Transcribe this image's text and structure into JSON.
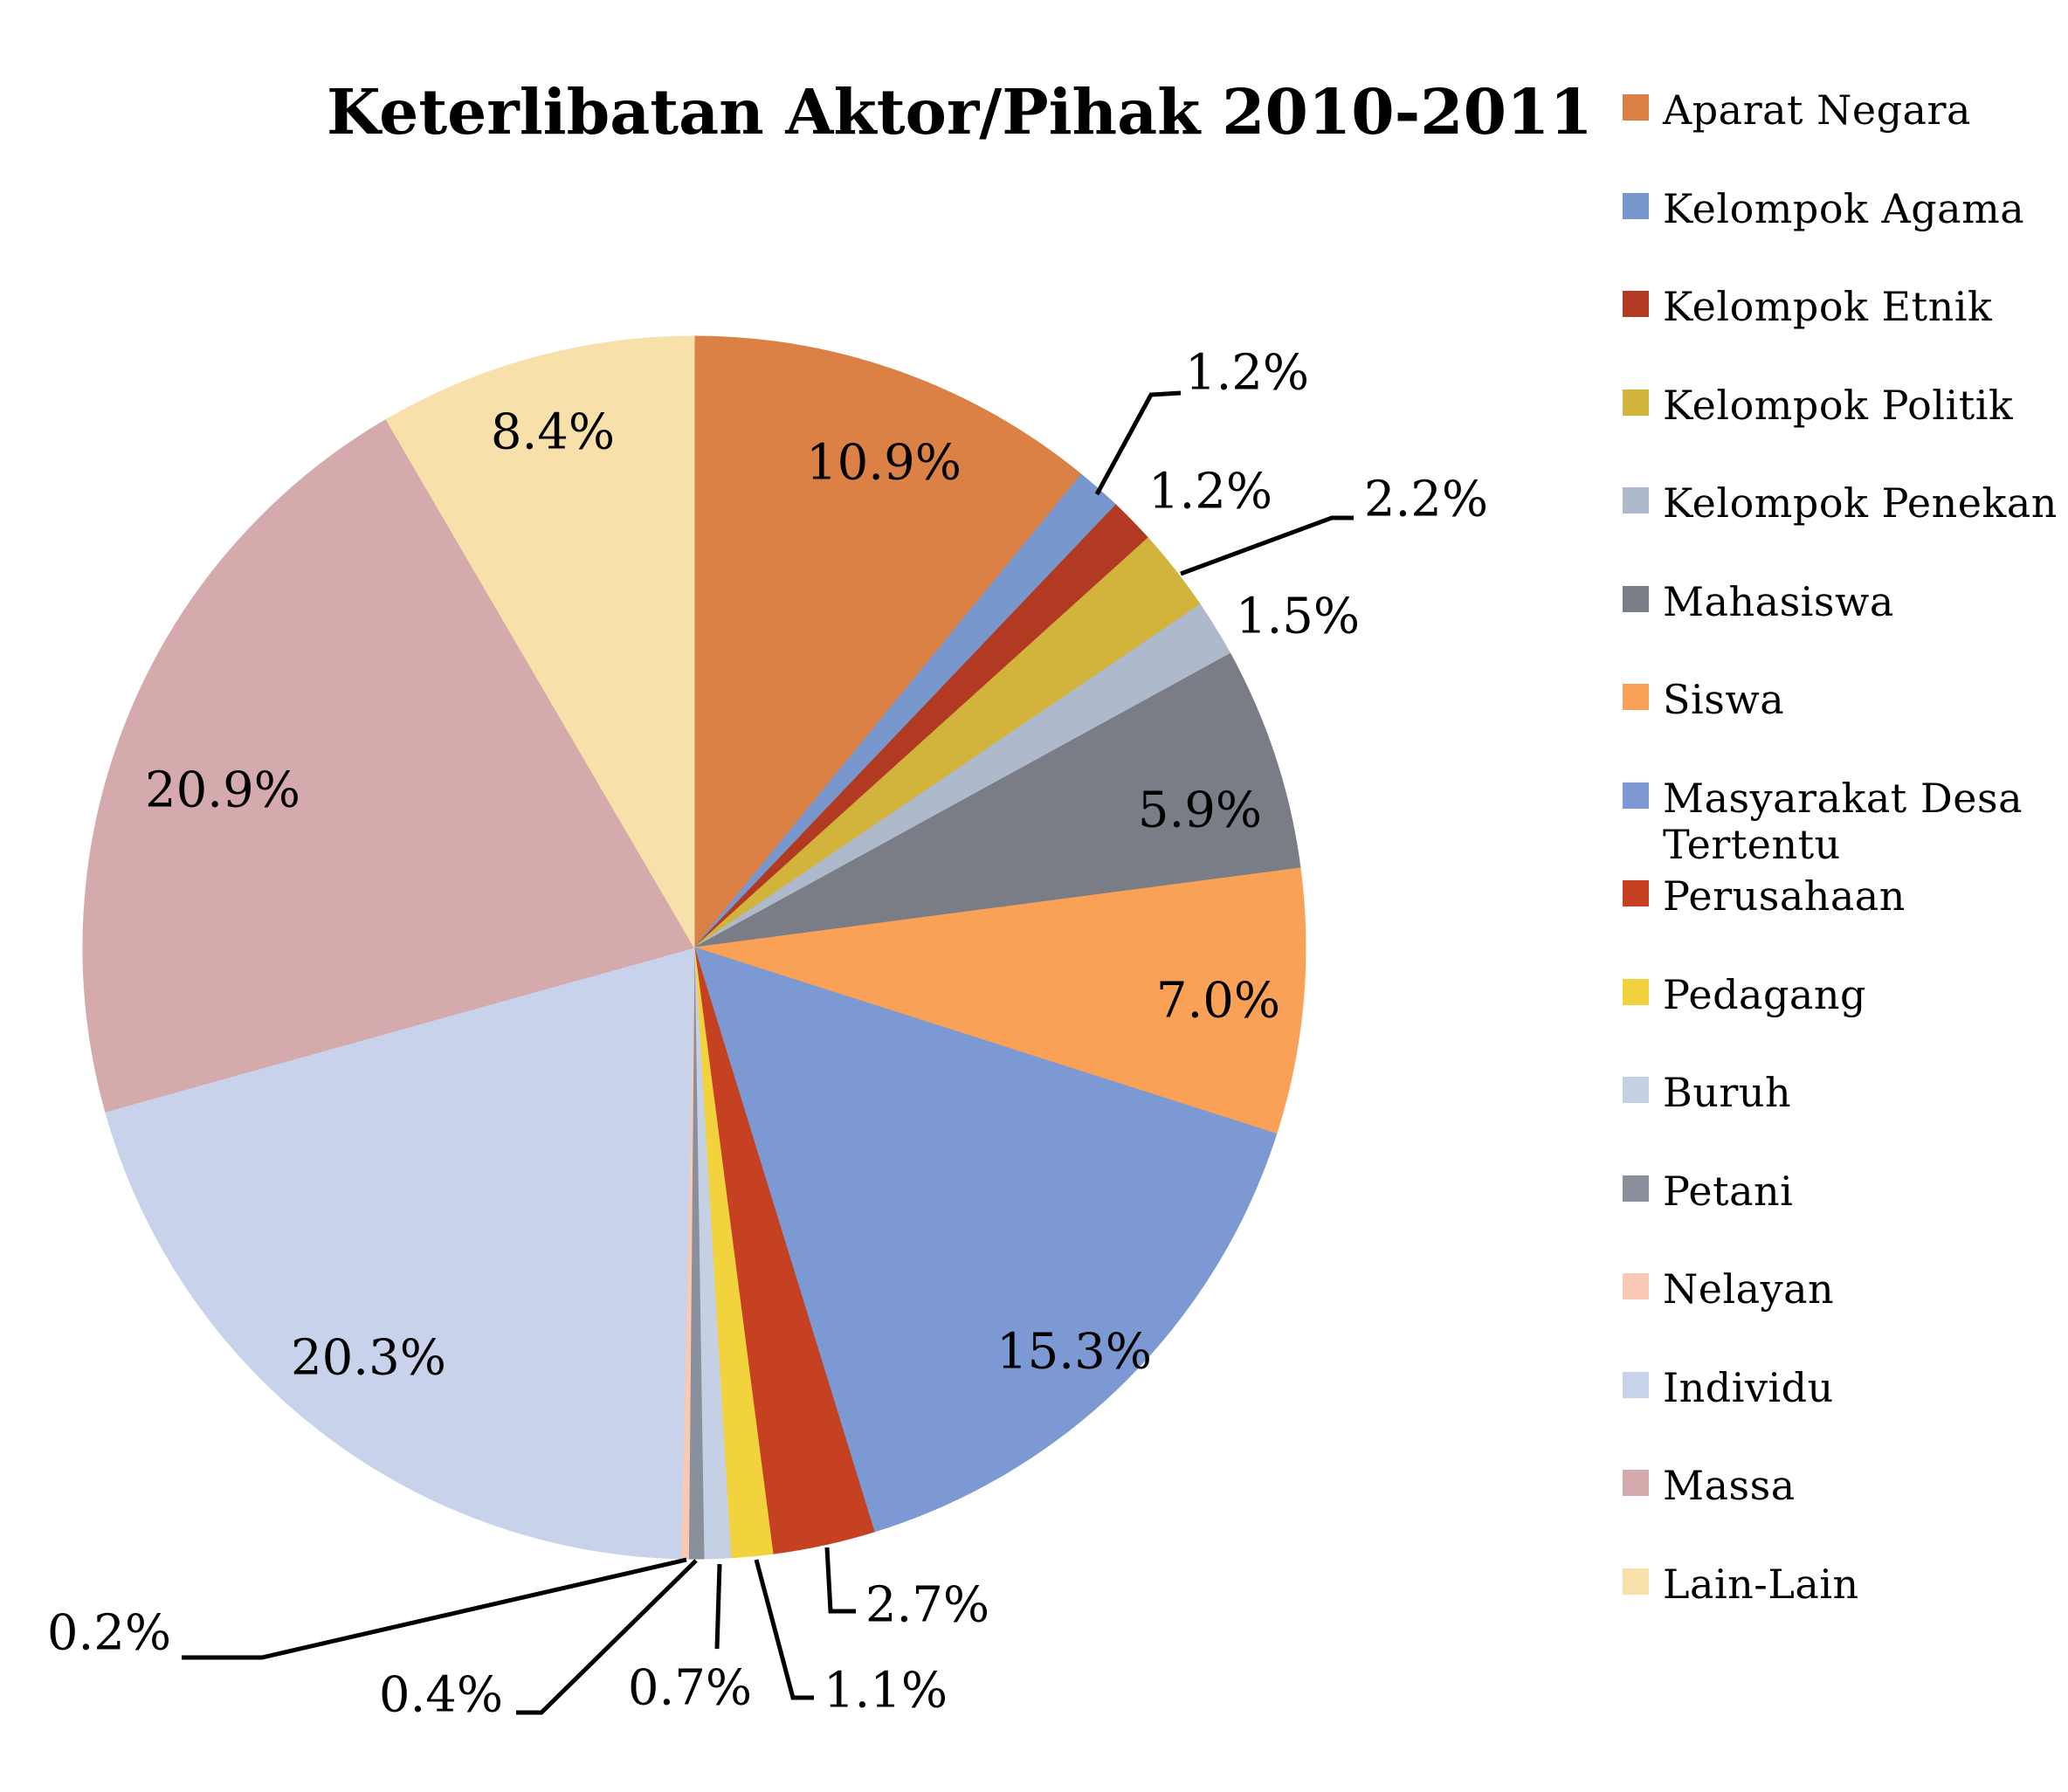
{
  "page": {
    "background": "#FFFFFF"
  },
  "chart": {
    "title": "Keterlibatan Aktor/Pihak 2010-2011"
  },
  "chart_data": {
    "type": "pie",
    "title": "Keterlibatan Aktor/Pihak 2010-2011",
    "legend_position": "right",
    "value_unit": "%",
    "value_format": "one_decimal_percent",
    "start_angle": "12-oclock-clockwise",
    "slices": [
      {
        "label": "Aparat Negara",
        "value": 10.9,
        "color": "#DC8145"
      },
      {
        "label": "Kelompok Agama",
        "value": 1.2,
        "color": "#7897CC"
      },
      {
        "label": "Kelompok Etnik",
        "value": 1.2,
        "color": "#B33A22"
      },
      {
        "label": "Kelompok Politik",
        "value": 2.2,
        "color": "#D2B33B"
      },
      {
        "label": "Kelompok Penekan",
        "value": 1.5,
        "color": "#AEB9CC"
      },
      {
        "label": "Mahasiswa",
        "value": 5.9,
        "color": "#7A7D85"
      },
      {
        "label": "Siswa",
        "value": 7.0,
        "color": "#F9A156"
      },
      {
        "label": "Masyarakat Desa Tertentu",
        "value": 15.3,
        "color": "#7C99D3"
      },
      {
        "label": "Perusahaan",
        "value": 2.7,
        "color": "#C54122"
      },
      {
        "label": "Pedagang",
        "value": 1.1,
        "color": "#F2D23D"
      },
      {
        "label": "Buruh",
        "value": 0.7,
        "color": "#C6D0E4"
      },
      {
        "label": "Petani",
        "value": 0.4,
        "color": "#8A909B"
      },
      {
        "label": "Nelayan",
        "value": 0.2,
        "color": "#F9C9B4"
      },
      {
        "label": "Individu",
        "value": 20.3,
        "color": "#C8D2EB"
      },
      {
        "label": "Massa",
        "value": 20.9,
        "color": "#D5AAAC"
      },
      {
        "label": "Lain-Lain",
        "value": 8.4,
        "color": "#F7E0AA"
      }
    ]
  }
}
